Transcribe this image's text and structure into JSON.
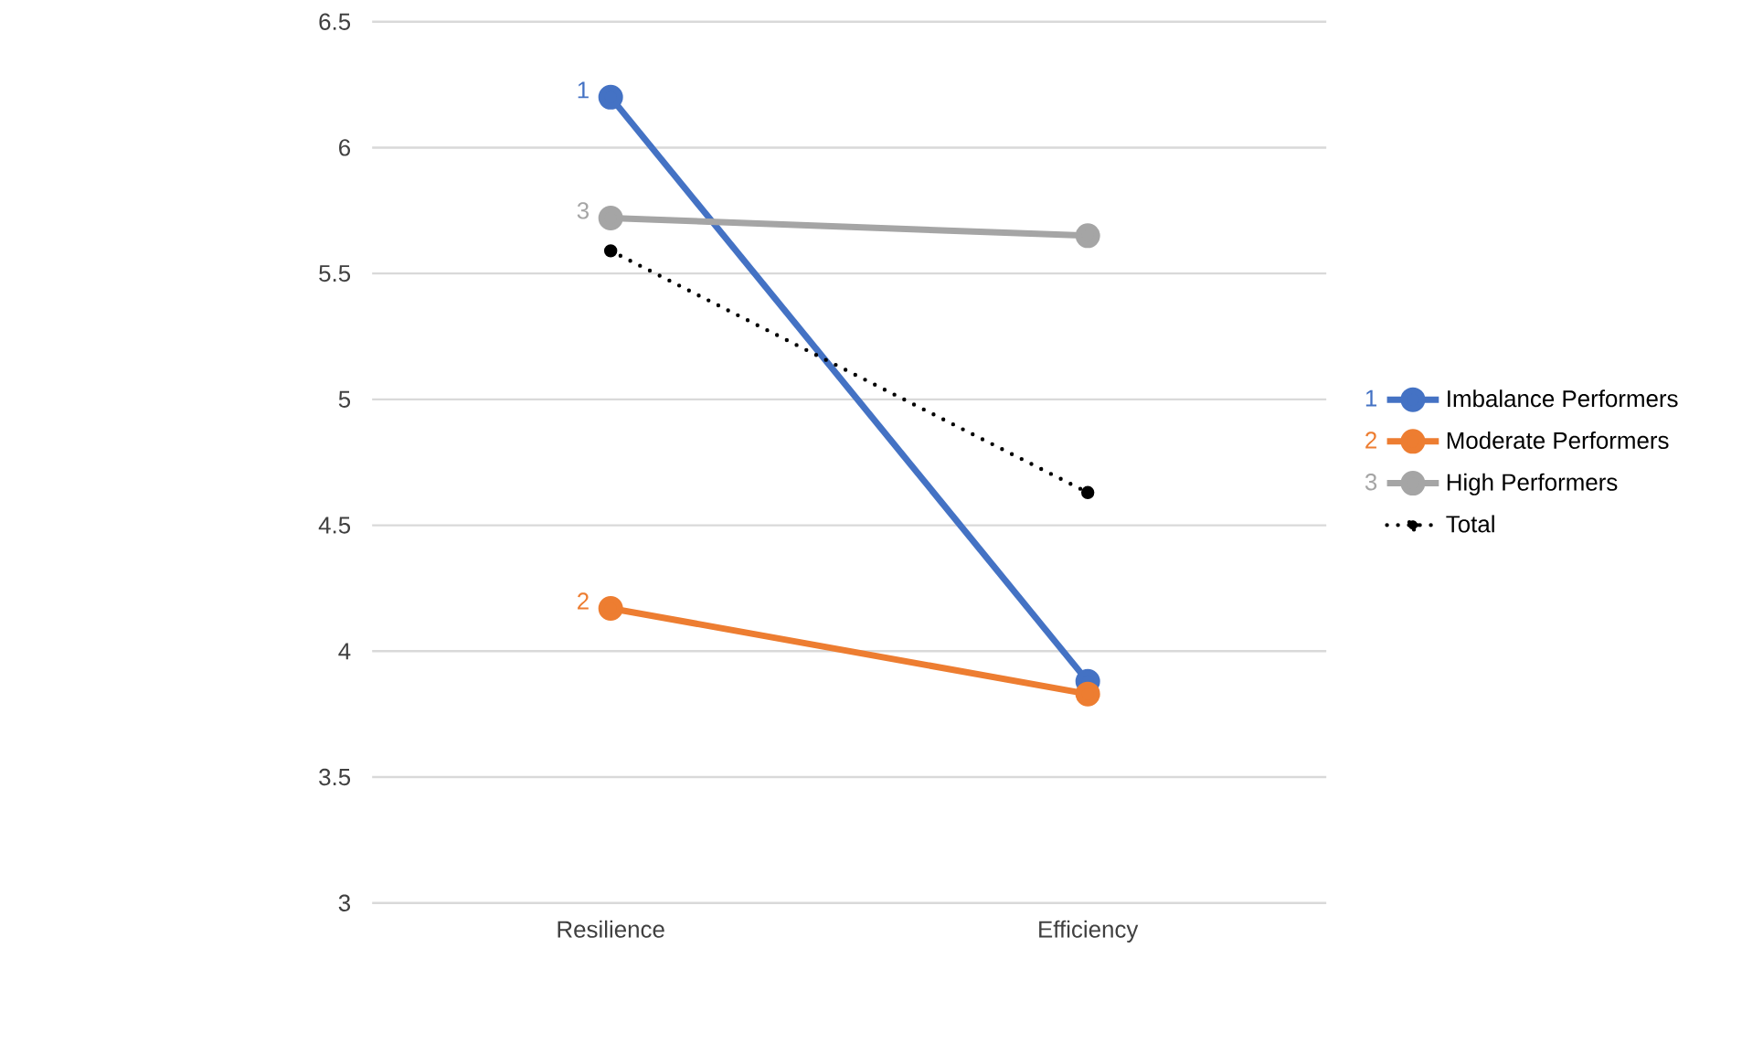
{
  "chart_data": {
    "type": "line",
    "categories": [
      "Resilience",
      "Efficiency"
    ],
    "series": [
      {
        "name": "Imbalance Performers",
        "color": "#4472c4",
        "values": [
          6.2,
          3.88
        ]
      },
      {
        "name": "Moderate Performers",
        "color": "#ed7d31",
        "values": [
          4.17,
          3.83
        ]
      },
      {
        "name": "High Performers",
        "color": "#a5a5a5",
        "values": [
          5.72,
          5.65
        ]
      },
      {
        "name": "Total",
        "color": "#000000",
        "values": [
          5.59,
          4.63
        ],
        "line_style": "dotted"
      }
    ],
    "ylim": [
      3,
      6.5
    ],
    "yticks": [
      3,
      3.5,
      4,
      4.5,
      5,
      5.5,
      6,
      6.5
    ],
    "annotations": [
      {
        "text": "1",
        "x": "Resilience",
        "y": 6.2
      },
      {
        "text": "2",
        "x": "Resilience",
        "y": 4.17
      },
      {
        "text": "3",
        "x": "Resilience",
        "y": 5.72
      }
    ],
    "grid": "y",
    "legend": "right",
    "marker": "circle",
    "line_style": "solid"
  }
}
